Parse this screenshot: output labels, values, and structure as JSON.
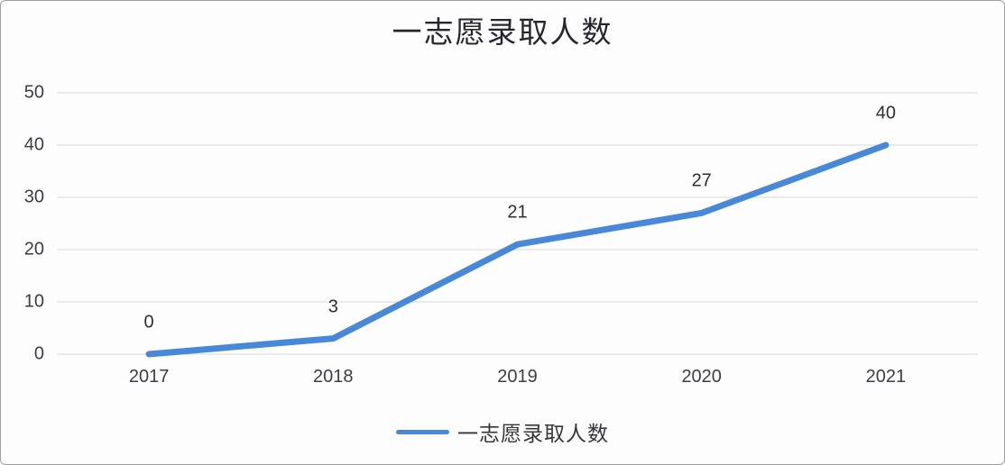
{
  "title": "一志愿录取人数",
  "legend": {
    "label": "一志愿录取人数"
  },
  "colors": {
    "line": "#4788d9",
    "gridline": "#d9d9d9",
    "tick_text": "#3d3d46",
    "title_text": "#26262e",
    "background": "#fdfdfd",
    "border": "#9f9fa4"
  },
  "chart_data": {
    "type": "line",
    "title": "一志愿录取人数",
    "categories": [
      "2017",
      "2018",
      "2019",
      "2020",
      "2021"
    ],
    "series": [
      {
        "name": "一志愿录取人数",
        "values": [
          0,
          3,
          21,
          27,
          40
        ],
        "color": "#4788d9",
        "data_labels": [
          "0",
          "3",
          "21",
          "27",
          "40"
        ]
      }
    ],
    "xlabel": "",
    "ylabel": "",
    "ylim": [
      0,
      50
    ],
    "yticks": [
      0,
      10,
      20,
      30,
      40,
      50
    ],
    "grid": true,
    "legend_position": "bottom"
  }
}
